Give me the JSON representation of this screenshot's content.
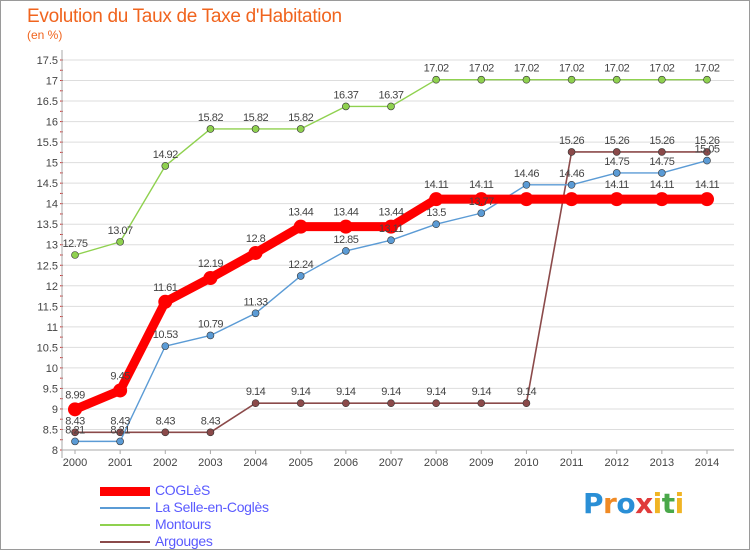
{
  "header": {
    "title": "Evolution du Taux de Taxe d'Habitation",
    "unit": "(en %)"
  },
  "logo": {
    "text": "Proxiti",
    "letters": [
      {
        "ch": "P",
        "color": "#2a8fd6"
      },
      {
        "ch": "r",
        "color": "#f08a24"
      },
      {
        "ch": "o",
        "color": "#2a8fd6"
      },
      {
        "ch": "x",
        "color": "#e03a3a"
      },
      {
        "ch": "i",
        "color": "#f0b424"
      },
      {
        "ch": "t",
        "color": "#4aa84a"
      },
      {
        "ch": "i",
        "color": "#f0b424"
      }
    ]
  },
  "chart_data": {
    "type": "line",
    "x": [
      "2000",
      "2001",
      "2002",
      "2003",
      "2004",
      "2005",
      "2006",
      "2007",
      "2008",
      "2009",
      "2010",
      "2011",
      "2012",
      "2013",
      "2014"
    ],
    "ylim": [
      8,
      17.5
    ],
    "yticks": [
      "8",
      "8.5",
      "9",
      "9.5",
      "10",
      "10.5",
      "11",
      "11.5",
      "12",
      "12.5",
      "13",
      "13.5",
      "14",
      "14.5",
      "15",
      "15.5",
      "16",
      "16.5",
      "17",
      "17.5"
    ],
    "grid": "horizontal",
    "legend_position": "bottom-left",
    "series": [
      {
        "name": "COGLèS",
        "color": "#ff0000",
        "values": [
          8.99,
          9.45,
          11.61,
          12.19,
          12.8,
          13.44,
          13.44,
          13.44,
          14.11,
          14.11,
          14.11,
          14.11,
          14.11,
          14.11,
          14.11
        ],
        "labels": [
          "8.99",
          "9.45",
          "11.61",
          "12.19",
          "12.8",
          "13.44",
          "13.44",
          "13.44",
          "14.11",
          "14.11",
          "",
          "",
          "14.11",
          "14.11",
          "14.11"
        ]
      },
      {
        "name": "La Selle-en-Coglès",
        "color": "#5b9bd5",
        "values": [
          8.21,
          8.21,
          10.53,
          10.79,
          11.33,
          12.24,
          12.85,
          13.11,
          13.5,
          13.77,
          14.46,
          14.46,
          14.75,
          14.75,
          15.05
        ],
        "labels": [
          "8.21",
          "8.21",
          "10.53",
          "10.79",
          "11.33",
          "12.24",
          "12.85",
          "13.11",
          "13.5",
          "13.77",
          "14.46",
          "14.46",
          "14.75",
          "14.75",
          "15.05"
        ]
      },
      {
        "name": "Montours",
        "color": "#8fd14f",
        "values": [
          12.75,
          13.07,
          14.92,
          15.82,
          15.82,
          15.82,
          16.37,
          16.37,
          17.02,
          17.02,
          17.02,
          17.02,
          17.02,
          17.02,
          17.02
        ],
        "labels": [
          "12.75",
          "13.07",
          "14.92",
          "15.82",
          "15.82",
          "15.82",
          "16.37",
          "16.37",
          "17.02",
          "17.02",
          "17.02",
          "17.02",
          "17.02",
          "17.02",
          "17.02"
        ]
      },
      {
        "name": "Argouges",
        "color": "#8b4a4a",
        "values": [
          8.43,
          8.43,
          8.43,
          8.43,
          9.14,
          9.14,
          9.14,
          9.14,
          9.14,
          9.14,
          9.14,
          15.26,
          15.26,
          15.26,
          15.26
        ],
        "labels": [
          "8.43",
          "8.43",
          "8.43",
          "8.43",
          "9.14",
          "9.14",
          "9.14",
          "9.14",
          "9.14",
          "9.14",
          "9.14",
          "15.26",
          "15.26",
          "15.26",
          "15.26"
        ]
      }
    ]
  }
}
